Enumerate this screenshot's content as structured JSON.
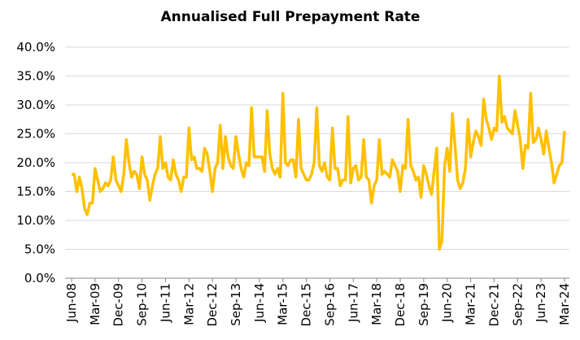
{
  "chart_data": {
    "type": "line",
    "title": "Annualised Full Prepayment Rate",
    "categories": [
      "Jun-08",
      null,
      null,
      null,
      null,
      null,
      null,
      null,
      null,
      "Mar-09",
      null,
      null,
      null,
      null,
      null,
      null,
      null,
      null,
      "Dec-09",
      null,
      null,
      null,
      null,
      null,
      null,
      null,
      null,
      "Sep-10",
      null,
      null,
      null,
      null,
      null,
      null,
      null,
      null,
      "Jun-11",
      null,
      null,
      null,
      null,
      null,
      null,
      null,
      null,
      "Mar-12",
      null,
      null,
      null,
      null,
      null,
      null,
      null,
      null,
      "Dec-12",
      null,
      null,
      null,
      null,
      null,
      null,
      null,
      null,
      "Sep-13",
      null,
      null,
      null,
      null,
      null,
      null,
      null,
      null,
      "Jun-14",
      null,
      null,
      null,
      null,
      null,
      null,
      null,
      null,
      "Mar-15",
      null,
      null,
      null,
      null,
      null,
      null,
      null,
      null,
      "Dec-15",
      null,
      null,
      null,
      null,
      null,
      null,
      null,
      null,
      "Sep-16",
      null,
      null,
      null,
      null,
      null,
      null,
      null,
      null,
      "Jun-17",
      null,
      null,
      null,
      null,
      null,
      null,
      null,
      null,
      "Mar-18",
      null,
      null,
      null,
      null,
      null,
      null,
      null,
      null,
      "Dec-18",
      null,
      null,
      null,
      null,
      null,
      null,
      null,
      null,
      "Sep-19",
      null,
      null,
      null,
      null,
      null,
      null,
      null,
      null,
      "Jun-20",
      null,
      null,
      null,
      null,
      null,
      null,
      null,
      null,
      "Mar-21",
      null,
      null,
      null,
      null,
      null,
      null,
      null,
      null,
      "Dec-21",
      null,
      null,
      null,
      null,
      null,
      null,
      null,
      null,
      "Sep-22",
      null,
      null,
      null,
      null,
      null,
      null,
      null,
      null,
      "Jun-23",
      null,
      null,
      null,
      null,
      null,
      null,
      null,
      null,
      "Mar-24"
    ],
    "values": [
      18,
      18,
      15,
      17.5,
      15.5,
      12,
      11,
      13,
      13,
      19,
      17,
      15,
      15.5,
      16.5,
      16,
      17,
      21,
      17,
      16,
      15,
      18,
      24,
      20,
      17.5,
      18.5,
      18,
      15.5,
      21,
      18,
      17,
      13.5,
      16,
      18,
      19,
      24.5,
      19,
      20,
      17.5,
      17,
      20.5,
      18,
      17,
      15,
      17.5,
      17.5,
      26,
      20.5,
      21,
      19,
      19,
      18.5,
      22.5,
      21.5,
      18.5,
      15,
      19,
      20,
      26.5,
      19,
      24.5,
      21,
      19.5,
      19,
      24.5,
      21.5,
      19,
      17.5,
      20,
      19.5,
      29.5,
      21,
      21,
      21,
      21,
      18.5,
      29,
      21.5,
      19,
      18,
      19,
      17.5,
      32,
      20,
      19.5,
      20.5,
      20.5,
      17.5,
      27.5,
      19,
      18,
      17,
      17,
      18,
      20,
      29.5,
      19.5,
      18.5,
      20,
      17.5,
      17,
      26,
      19,
      19,
      16,
      17,
      17,
      28,
      16.5,
      19,
      19.5,
      17,
      17.5,
      24,
      17.5,
      17,
      13,
      16,
      17,
      24,
      18,
      18.5,
      18,
      17.5,
      20.5,
      19.5,
      18.5,
      15,
      19.5,
      19,
      27.5,
      19.5,
      18.5,
      17,
      17.5,
      14,
      19.5,
      18,
      16,
      14.5,
      18.5,
      22.5,
      5,
      6.5,
      19.5,
      22.5,
      18.5,
      28.5,
      23,
      17,
      15.5,
      16.5,
      19,
      27.5,
      21,
      23.5,
      25.5,
      24.5,
      23,
      31,
      27.5,
      26,
      24,
      26,
      25.5,
      35,
      27,
      28,
      26,
      25.5,
      25,
      29,
      26.5,
      24,
      19,
      23,
      22.5,
      32,
      23.5,
      24,
      26,
      24,
      21.5,
      25.5,
      22.5,
      20,
      16.5,
      18,
      19.5,
      20,
      25.5
    ],
    "color": "#FFC000",
    "ylim": [
      0,
      40
    ],
    "yticks": [
      {
        "value": 0,
        "label": "0.0%"
      },
      {
        "value": 5,
        "label": "5.0%"
      },
      {
        "value": 10,
        "label": "10.0%"
      },
      {
        "value": 15,
        "label": "15.0%"
      },
      {
        "value": 20,
        "label": "20.0%"
      },
      {
        "value": 25,
        "label": "25.0%"
      },
      {
        "value": 30,
        "label": "30.0%"
      },
      {
        "value": 35,
        "label": "35.0%"
      },
      {
        "value": 40,
        "label": "40.0%"
      }
    ],
    "grid": true
  }
}
